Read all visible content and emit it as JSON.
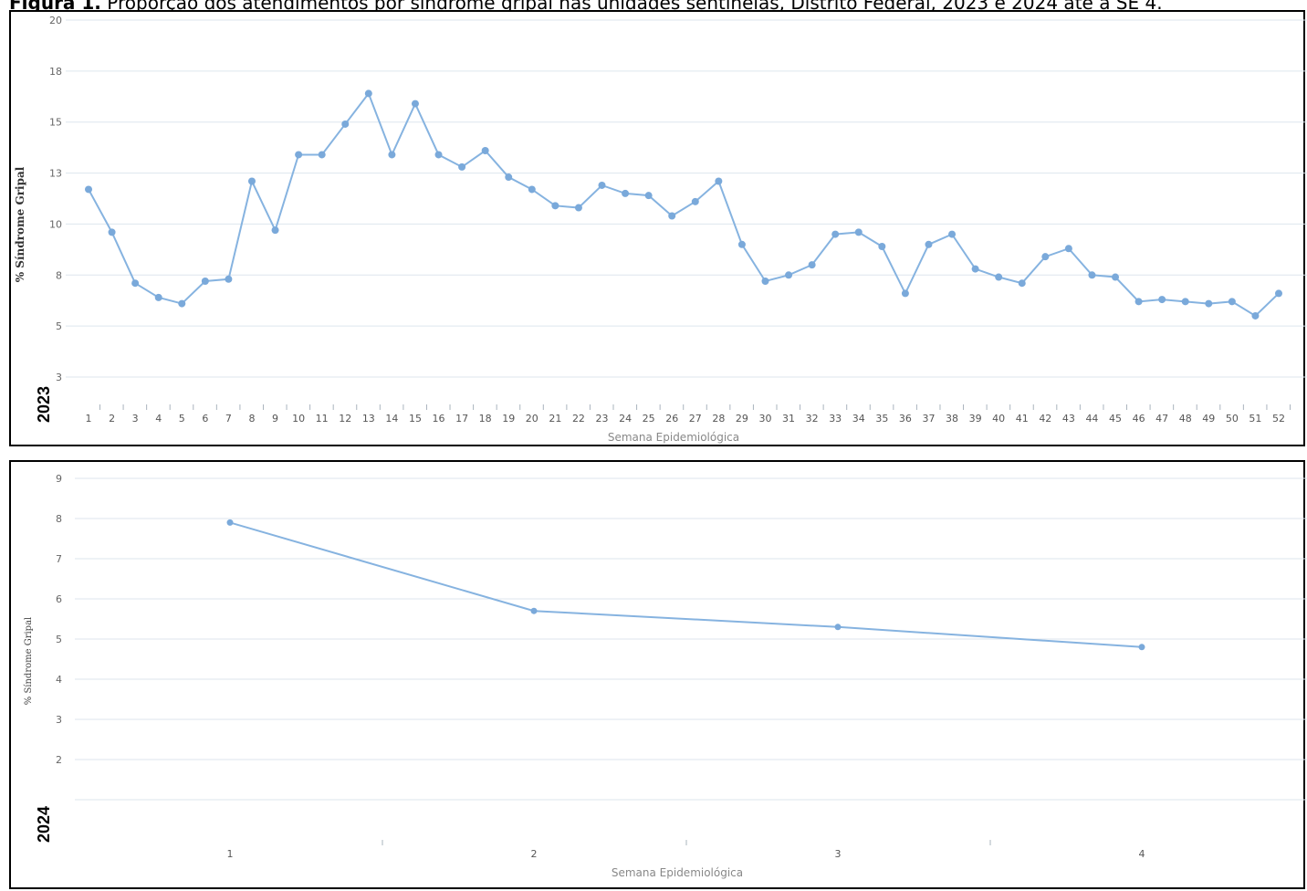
{
  "figure_title": {
    "prefix": "Figura 1.",
    "text": " Proporção dos atendimentos por síndrome gripal nas unidades sentinelas, Distrito Federal, 2023 e 2024 até a SE 4."
  },
  "colors": {
    "series": "#86b3e0",
    "grid": "#dde6ee",
    "frame": "#000000"
  },
  "chart_data": [
    {
      "type": "line",
      "year_label": "2023",
      "xlabel": "Semana Epidemiológica",
      "ylabel": "% Síndrome Gripal",
      "ylim": [
        2.5,
        20
      ],
      "yticks": [
        "3",
        "5",
        "8",
        "10",
        "13",
        "15",
        "18",
        "20"
      ],
      "ytick_values": [
        2.5,
        5,
        7.5,
        10,
        12.5,
        15,
        17.5,
        20
      ],
      "x": [
        1,
        2,
        3,
        4,
        5,
        6,
        7,
        8,
        9,
        10,
        11,
        12,
        13,
        14,
        15,
        16,
        17,
        18,
        19,
        20,
        21,
        22,
        23,
        24,
        25,
        26,
        27,
        28,
        29,
        30,
        31,
        32,
        33,
        34,
        35,
        36,
        37,
        38,
        39,
        40,
        41,
        42,
        43,
        44,
        45,
        46,
        47,
        48,
        49,
        50,
        51,
        52
      ],
      "series": [
        {
          "values": [
            11.7,
            9.6,
            7.1,
            6.4,
            6.1,
            7.2,
            7.3,
            12.1,
            9.7,
            13.4,
            13.4,
            14.9,
            16.4,
            13.4,
            15.9,
            13.4,
            12.8,
            13.6,
            12.3,
            11.7,
            10.9,
            10.8,
            11.9,
            11.5,
            11.4,
            10.4,
            11.1,
            12.1,
            9.0,
            7.2,
            7.5,
            8.0,
            9.5,
            9.6,
            8.9,
            6.6,
            9.0,
            9.5,
            7.8,
            7.4,
            7.1,
            8.4,
            8.8,
            7.5,
            7.4,
            6.2,
            6.3,
            6.2,
            6.1,
            6.2,
            5.5,
            6.6
          ]
        }
      ]
    },
    {
      "type": "line",
      "year_label": "2024",
      "xlabel": "Semana Epidemiológica",
      "ylabel": "% Síndrome Gripal",
      "ylim": [
        1,
        9
      ],
      "yticks": [
        "2",
        "3",
        "4",
        "5",
        "6",
        "7",
        "8",
        "9"
      ],
      "ytick_values": [
        2,
        3,
        4,
        5,
        6,
        7,
        8,
        9
      ],
      "x": [
        1,
        2,
        3,
        4
      ],
      "series": [
        {
          "values": [
            7.9,
            5.7,
            5.3,
            4.8
          ]
        }
      ]
    }
  ]
}
